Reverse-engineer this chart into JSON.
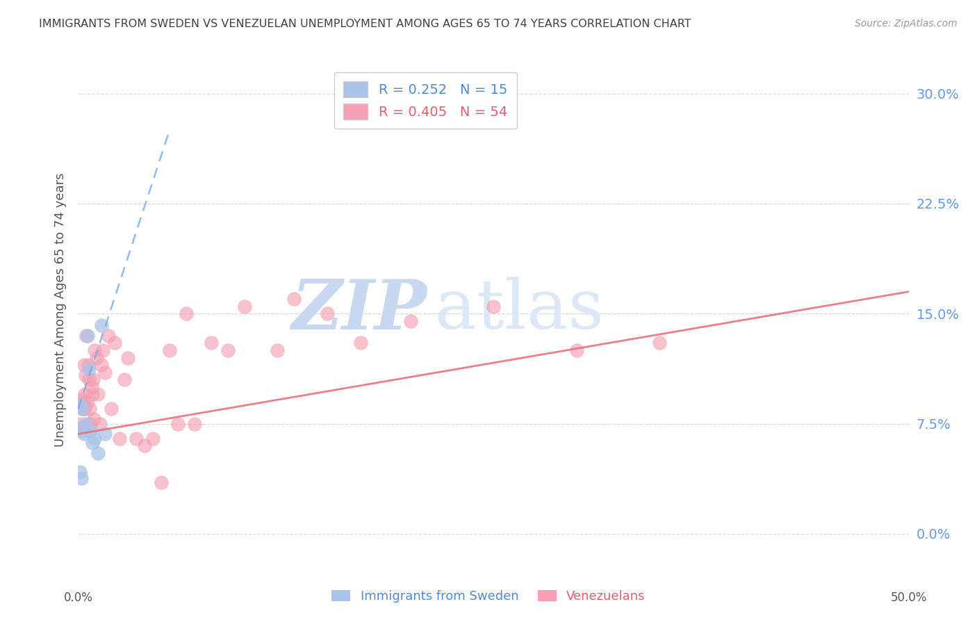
{
  "title": "IMMIGRANTS FROM SWEDEN VS VENEZUELAN UNEMPLOYMENT AMONG AGES 65 TO 74 YEARS CORRELATION CHART",
  "source": "Source: ZipAtlas.com",
  "ylabel": "Unemployment Among Ages 65 to 74 years",
  "ytick_values": [
    0.0,
    7.5,
    15.0,
    22.5,
    30.0
  ],
  "xlim": [
    0.0,
    50.0
  ],
  "ylim": [
    -2.5,
    33.0
  ],
  "sweden_color": "#aac4e8",
  "venezu_color": "#f4a0b5",
  "sweden_line_color": "#7aaadd",
  "venezu_line_color": "#e8707f",
  "background_color": "#ffffff",
  "grid_color": "#d8d8d8",
  "watermark_zip": "ZIP",
  "watermark_atlas": "atlas",
  "watermark_color": "#dce8f5",
  "title_color": "#404040",
  "source_color": "#999999",
  "ytick_color": "#6699dd",
  "legend_text_color1": "#5588cc",
  "legend_text_color2": "#dd6070",
  "sweden_scatter_x": [
    0.15,
    0.25,
    0.35,
    0.45,
    0.55,
    0.65,
    0.75,
    0.85,
    1.0,
    1.2,
    1.4,
    1.6,
    0.1,
    0.1,
    0.2
  ],
  "sweden_scatter_y": [
    7.2,
    8.5,
    6.8,
    7.5,
    13.5,
    11.2,
    7.0,
    6.2,
    6.5,
    5.5,
    14.2,
    6.8,
    8.8,
    4.2,
    3.8
  ],
  "venezu_scatter_x": [
    0.05,
    0.1,
    0.15,
    0.2,
    0.25,
    0.3,
    0.35,
    0.4,
    0.45,
    0.5,
    0.55,
    0.6,
    0.65,
    0.7,
    0.75,
    0.8,
    0.85,
    0.9,
    0.95,
    1.0,
    1.1,
    1.2,
    1.3,
    1.4,
    1.5,
    1.6,
    1.8,
    2.0,
    2.2,
    2.5,
    2.8,
    3.0,
    3.5,
    4.0,
    4.5,
    5.0,
    5.5,
    6.0,
    6.5,
    7.0,
    8.0,
    9.0,
    10.0,
    12.0,
    13.0,
    15.0,
    17.0,
    20.0,
    25.0,
    30.0,
    35.0,
    0.3,
    0.4,
    0.6
  ],
  "venezu_scatter_y": [
    7.2,
    7.5,
    8.8,
    7.0,
    9.2,
    8.5,
    11.5,
    9.5,
    10.8,
    13.5,
    9.0,
    11.5,
    10.5,
    8.5,
    7.5,
    10.0,
    9.5,
    10.5,
    7.8,
    12.5,
    12.0,
    9.5,
    7.5,
    11.5,
    12.5,
    11.0,
    13.5,
    8.5,
    13.0,
    6.5,
    10.5,
    12.0,
    6.5,
    6.0,
    6.5,
    3.5,
    12.5,
    7.5,
    15.0,
    7.5,
    13.0,
    12.5,
    15.5,
    12.5,
    16.0,
    15.0,
    13.0,
    14.5,
    15.5,
    12.5,
    13.0,
    9.0,
    8.5,
    7.5
  ],
  "venezu_regline_x": [
    0.0,
    50.0
  ],
  "venezu_regline_y": [
    6.8,
    16.5
  ],
  "sweden_regline_x": [
    0.0,
    5.5
  ],
  "sweden_regline_y": [
    8.5,
    27.5
  ]
}
